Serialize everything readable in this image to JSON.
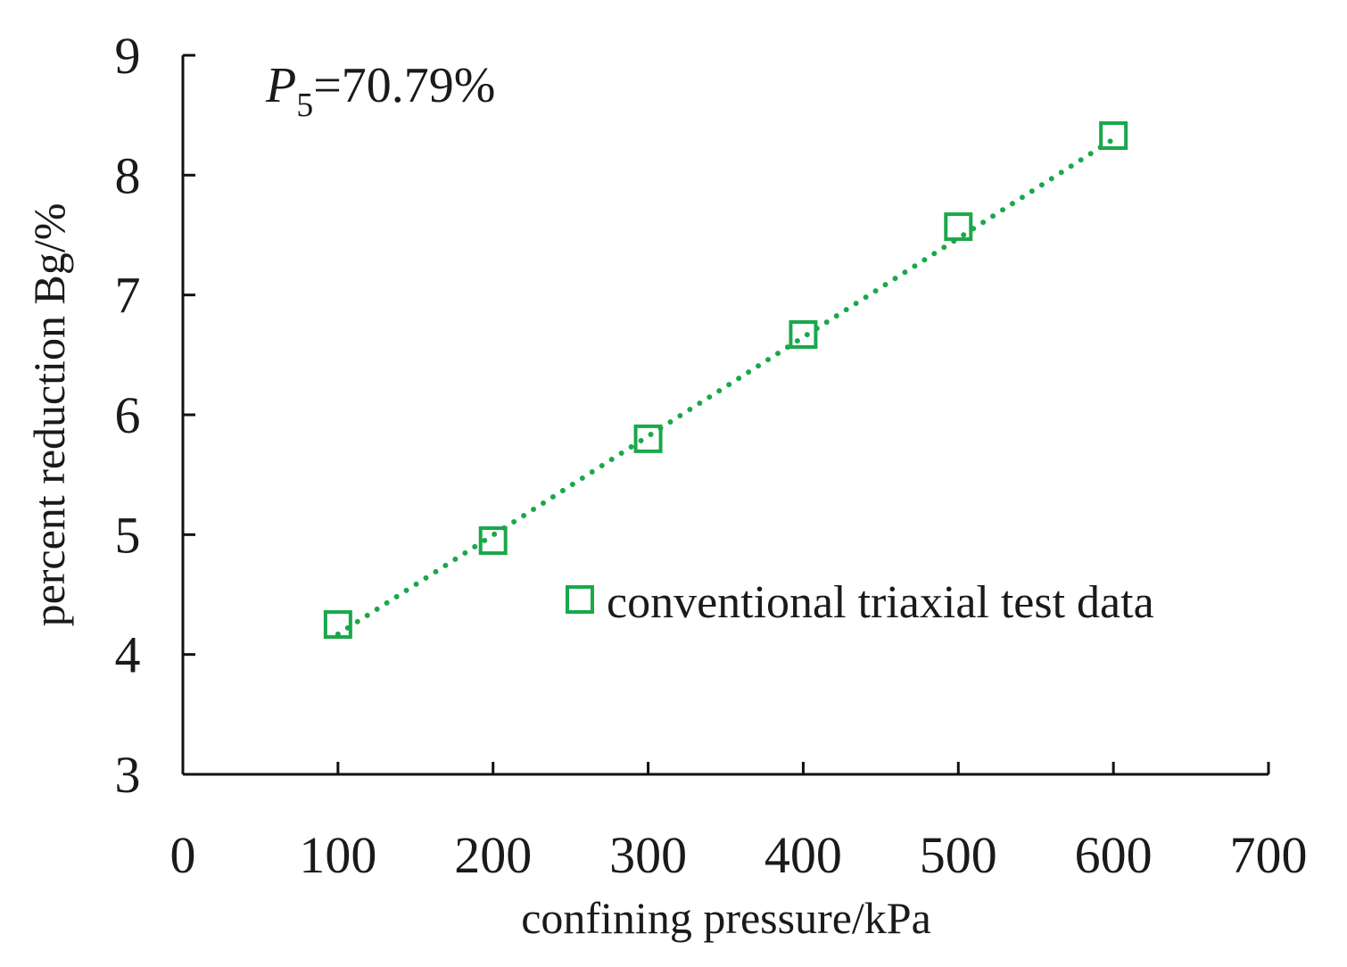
{
  "chart_data": {
    "type": "scatter",
    "title": "",
    "xlabel": "confining pressure/kPa",
    "ylabel": "percent reduction Bg/%",
    "xlim": [
      0,
      700
    ],
    "ylim": [
      3,
      9
    ],
    "xticks": [
      0,
      100,
      200,
      300,
      400,
      500,
      600,
      700
    ],
    "yticks": [
      3,
      4,
      5,
      6,
      7,
      8,
      9
    ],
    "grid": false,
    "annotation": {
      "symbol": "P",
      "subscript": "5",
      "text": "=70.79%"
    },
    "legend_position": "center-right",
    "series": [
      {
        "name": "conventional triaxial test data",
        "marker": "open-square",
        "color": "#1aa84a",
        "x": [
          100,
          200,
          300,
          400,
          500,
          600
        ],
        "y": [
          4.25,
          4.95,
          5.8,
          6.67,
          7.57,
          8.33
        ]
      }
    ],
    "trendline": {
      "style": "dotted",
      "color": "#1aa84a",
      "x": [
        100,
        600
      ],
      "y": [
        4.17,
        8.3
      ]
    }
  }
}
